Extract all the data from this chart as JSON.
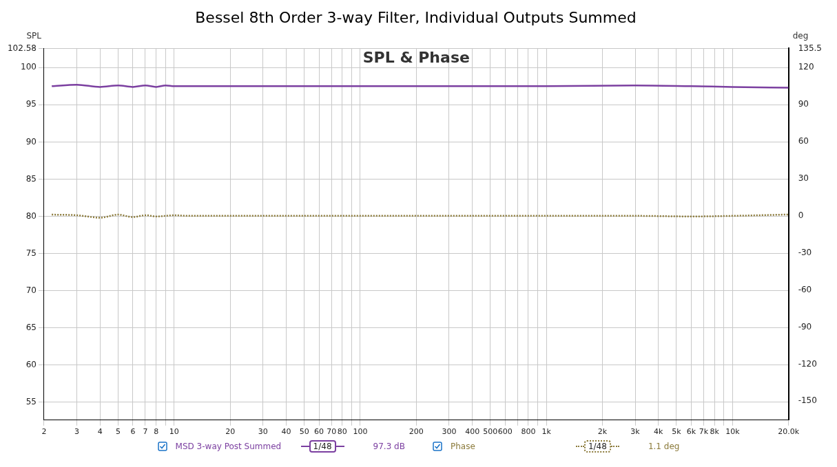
{
  "chart_data": {
    "type": "line",
    "title": "Bessel 8th Order 3-way Filter, Individual Outputs Summed",
    "subtitle": "SPL & Phase",
    "ylabel": "SPL",
    "y2label": "deg",
    "x": [
      2.2,
      3,
      4,
      5,
      6,
      7,
      8,
      9,
      10,
      12,
      15,
      20,
      50,
      100,
      300,
      1000,
      3000,
      6000,
      10000,
      20000
    ],
    "series": [
      {
        "name": "MSD 3-way Post Summed",
        "color": "#7b3fa0",
        "line_style": "solid",
        "values": [
          97.5,
          97.7,
          97.4,
          97.6,
          97.4,
          97.6,
          97.4,
          97.6,
          97.5,
          97.5,
          97.5,
          97.5,
          97.5,
          97.5,
          97.5,
          97.5,
          97.6,
          97.5,
          97.4,
          97.3
        ]
      },
      {
        "name": "Phase",
        "color": "#8b7a3a",
        "line_style": "dotted",
        "axis": "y2",
        "values": [
          1,
          0.5,
          -1.5,
          1,
          -1,
          0.5,
          -0.5,
          0,
          0.5,
          0,
          0,
          0,
          0,
          0,
          0,
          0,
          0,
          -0.5,
          0,
          1.1
        ]
      }
    ],
    "log": "x",
    "grid": true,
    "legend": "bottom",
    "xlim": [
      2,
      20000
    ],
    "xticks": [
      2,
      3,
      4,
      5,
      6,
      7,
      8,
      {
        "value": 9,
        "label": null
      },
      10,
      20,
      30,
      40,
      50,
      60,
      70,
      80,
      {
        "value": 90,
        "label": null
      },
      100,
      200,
      300,
      400,
      500,
      600,
      {
        "value": 700,
        "label": null
      },
      800,
      {
        "value": 900,
        "label": null
      },
      {
        "value": 1000,
        "label": "1k"
      },
      {
        "value": 2000,
        "label": "2k"
      },
      {
        "value": 3000,
        "label": "3k"
      },
      {
        "value": 4000,
        "label": "4k"
      },
      {
        "value": 5000,
        "label": "5k"
      },
      {
        "value": 6000,
        "label": "6k"
      },
      {
        "value": 7000,
        "label": "7k"
      },
      {
        "value": 8000,
        "label": "8k"
      },
      {
        "value": 9000,
        "label": null
      },
      {
        "value": 10000,
        "label": "10k"
      },
      {
        "value": 20000,
        "label": "20.0k"
      }
    ],
    "ylim": [
      52.6,
      102.58
    ],
    "yticks": [
      55,
      60,
      65,
      70,
      75,
      80,
      85,
      90,
      95,
      100,
      102.58
    ],
    "y2lim": [
      -165.3,
      135.5
    ],
    "y2ticks": [
      -150,
      -120,
      -90,
      -60,
      -30,
      0,
      30,
      60,
      90,
      120,
      135.5
    ],
    "annotations": [
      "1/48",
      "97.3 dB",
      "1/48",
      "1.1 deg"
    ]
  }
}
